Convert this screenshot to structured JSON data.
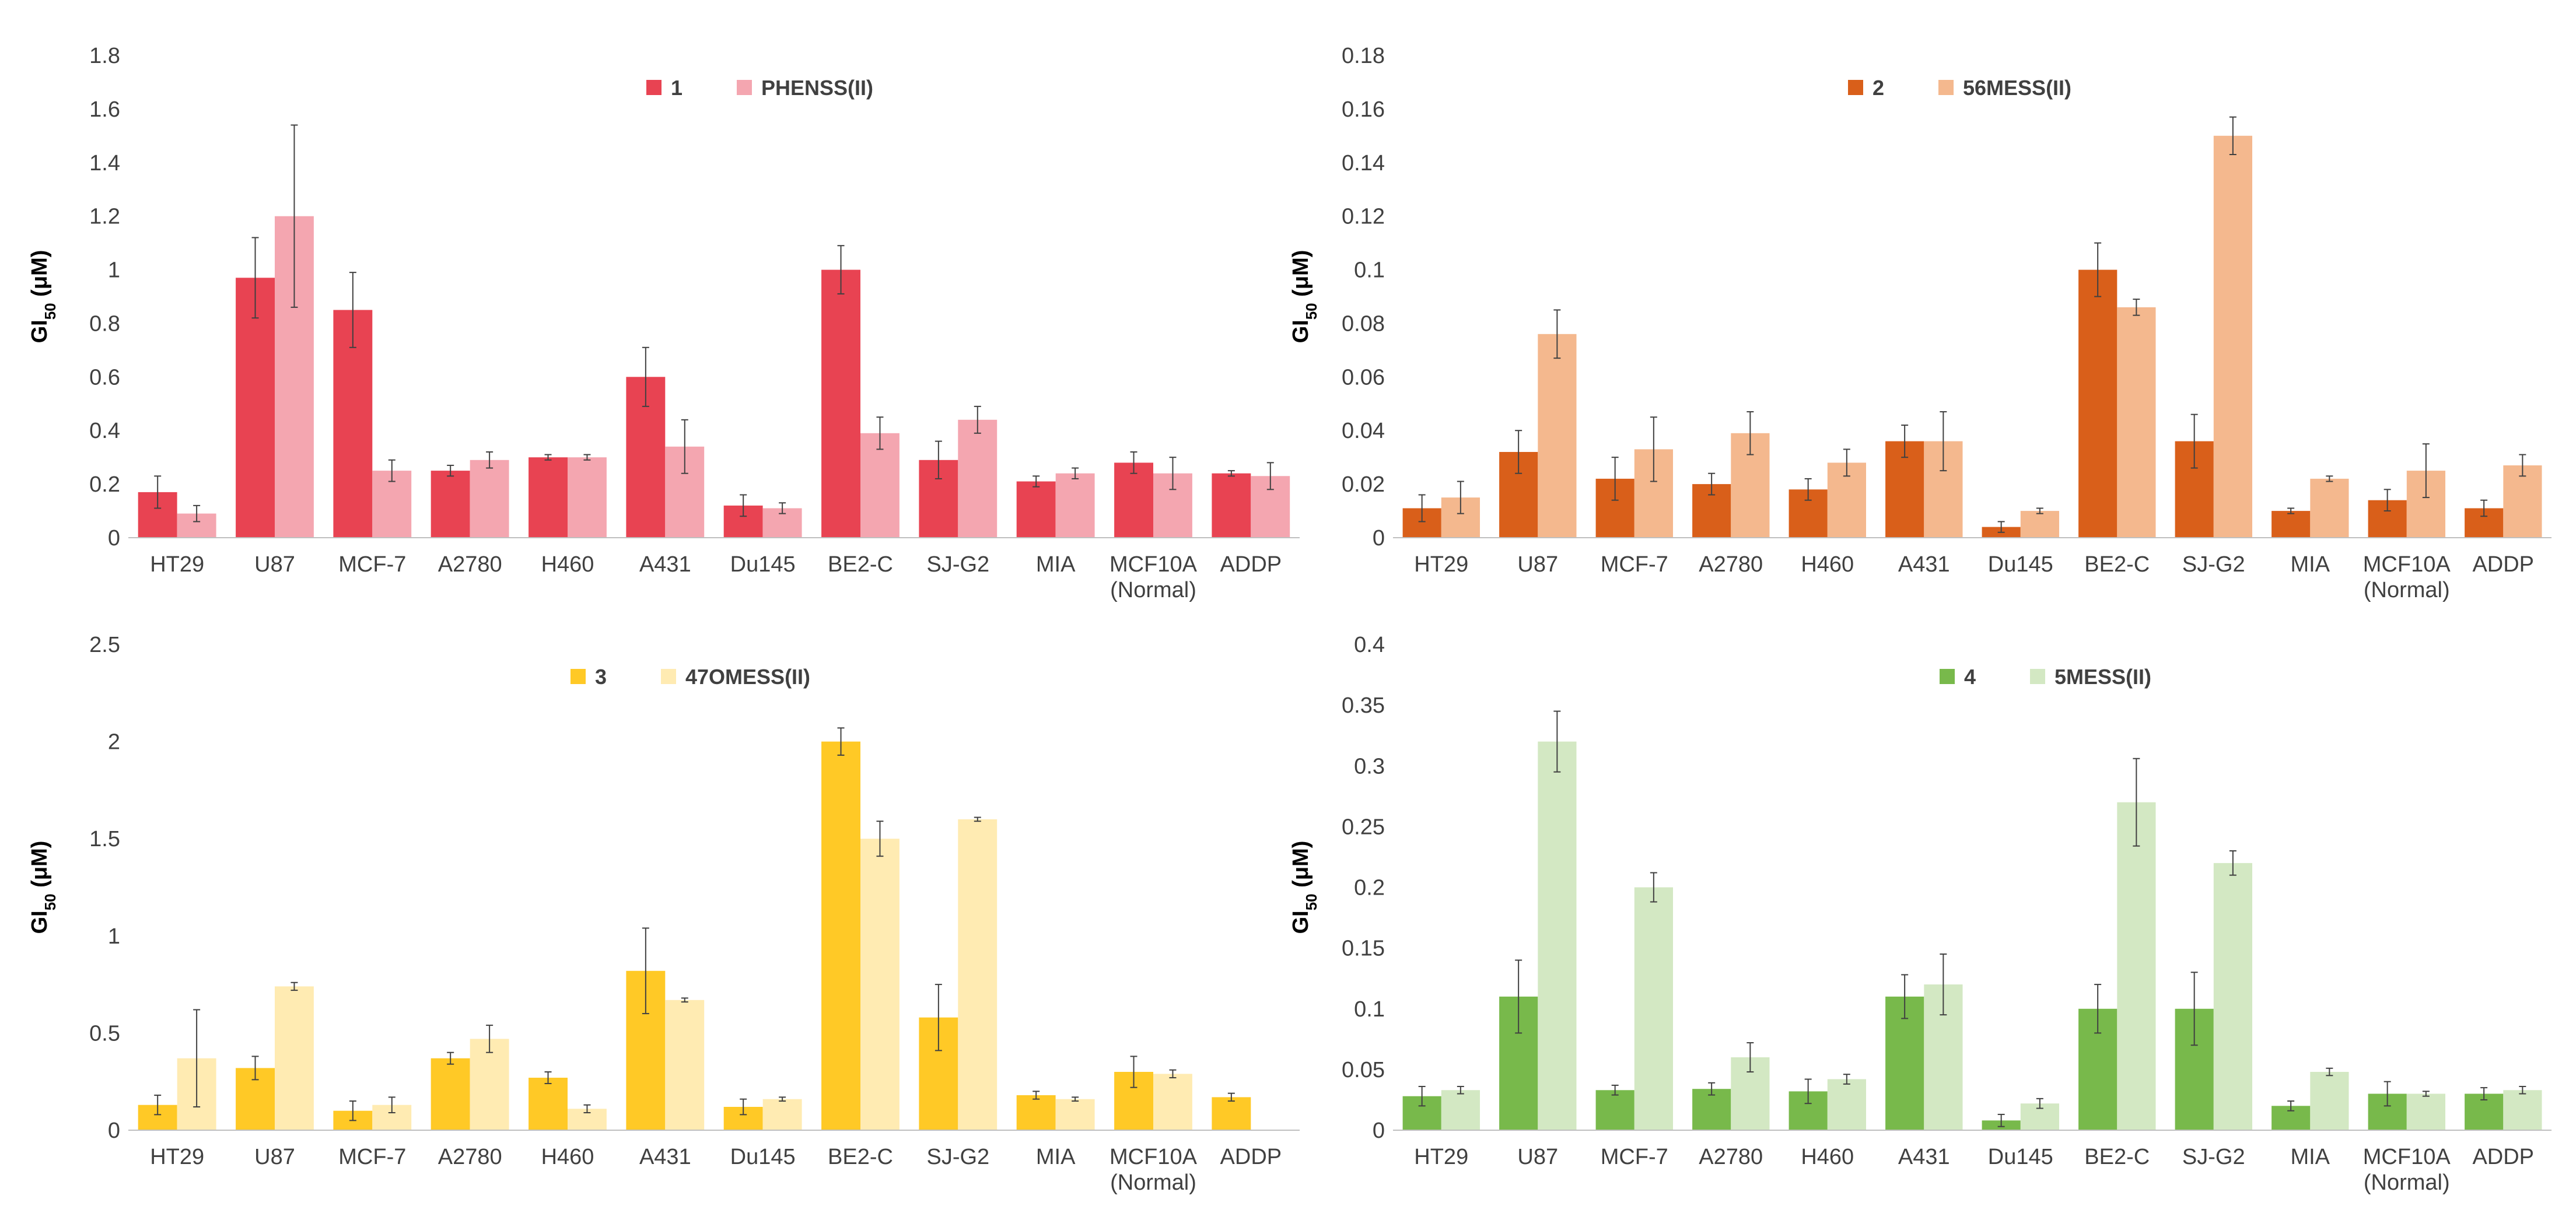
{
  "chart_data": [
    {
      "type": "bar",
      "categories": [
        "HT29",
        "U87",
        "MCF-7",
        "A2780",
        "H460",
        "A431",
        "Du145",
        "BE2-C",
        "SJ-G2",
        "MIA",
        "MCF10A\n(Normal)",
        "ADDP"
      ],
      "series": [
        {
          "name": "1",
          "color": "#E84352",
          "values": [
            0.17,
            0.97,
            0.85,
            0.25,
            0.3,
            0.6,
            0.12,
            1.0,
            0.29,
            0.21,
            0.28,
            0.24
          ],
          "errors": [
            0.06,
            0.15,
            0.14,
            0.02,
            0.01,
            0.11,
            0.04,
            0.09,
            0.07,
            0.02,
            0.04,
            0.01
          ]
        },
        {
          "name": "PHENSS(II)",
          "color": "#F4A6B0",
          "values": [
            0.09,
            1.2,
            0.25,
            0.29,
            0.3,
            0.34,
            0.11,
            0.39,
            0.44,
            0.24,
            0.24,
            0.23
          ],
          "errors": [
            0.03,
            0.34,
            0.04,
            0.03,
            0.01,
            0.1,
            0.02,
            0.06,
            0.05,
            0.02,
            0.06,
            0.05
          ]
        }
      ],
      "title": "",
      "xlabel": "",
      "ylabel": "GI50 (μM)",
      "ylim": [
        0,
        1.8
      ],
      "yticks": [
        "0",
        "0.2",
        "0.4",
        "0.6",
        "0.8",
        "1",
        "1.2",
        "1.4",
        "1.6",
        "1.8"
      ],
      "legend": "top-center"
    },
    {
      "type": "bar",
      "categories": [
        "HT29",
        "U87",
        "MCF-7",
        "A2780",
        "H460",
        "A431",
        "Du145",
        "BE2-C",
        "SJ-G2",
        "MIA",
        "MCF10A\n(Normal)",
        "ADDP"
      ],
      "series": [
        {
          "name": "2",
          "color": "#D95F1A",
          "values": [
            0.011,
            0.032,
            0.022,
            0.02,
            0.018,
            0.036,
            0.004,
            0.1,
            0.036,
            0.01,
            0.014,
            0.011
          ],
          "errors": [
            0.005,
            0.008,
            0.008,
            0.004,
            0.004,
            0.006,
            0.002,
            0.01,
            0.01,
            0.001,
            0.004,
            0.003
          ]
        },
        {
          "name": "56MESS(II)",
          "color": "#F4B88E",
          "values": [
            0.015,
            0.076,
            0.033,
            0.039,
            0.028,
            0.036,
            0.01,
            0.086,
            0.15,
            0.022,
            0.025,
            0.027
          ],
          "errors": [
            0.006,
            0.009,
            0.012,
            0.008,
            0.005,
            0.011,
            0.001,
            0.003,
            0.007,
            0.001,
            0.01,
            0.004
          ]
        }
      ],
      "title": "",
      "xlabel": "",
      "ylabel": "GI50 (μM)",
      "ylim": [
        0,
        0.18
      ],
      "yticks": [
        "0",
        "0.02",
        "0.04",
        "0.06",
        "0.08",
        "0.1",
        "0.12",
        "0.14",
        "0.16",
        "0.18"
      ],
      "legend": "top-center"
    },
    {
      "type": "bar",
      "categories": [
        "HT29",
        "U87",
        "MCF-7",
        "A2780",
        "H460",
        "A431",
        "Du145",
        "BE2-C",
        "SJ-G2",
        "MIA",
        "MCF10A\n(Normal)",
        "ADDP"
      ],
      "series": [
        {
          "name": "3",
          "color": "#FFC926",
          "values": [
            0.13,
            0.32,
            0.1,
            0.37,
            0.27,
            0.82,
            0.12,
            2.0,
            0.58,
            0.18,
            0.3,
            0.17
          ],
          "errors": [
            0.05,
            0.06,
            0.05,
            0.03,
            0.03,
            0.22,
            0.04,
            0.07,
            0.17,
            0.02,
            0.08,
            0.02
          ]
        },
        {
          "name": "47OMESS(II)",
          "color": "#FFEBB2",
          "values": [
            0.37,
            0.74,
            0.13,
            0.47,
            0.11,
            0.67,
            0.16,
            1.5,
            1.6,
            0.16,
            0.29,
            0.0
          ],
          "errors": [
            0.25,
            0.02,
            0.04,
            0.07,
            0.02,
            0.01,
            0.01,
            0.09,
            0.01,
            0.01,
            0.02,
            0.0
          ]
        }
      ],
      "title": "",
      "xlabel": "",
      "ylabel": "GI50 (μM)",
      "ylim": [
        0,
        2.5
      ],
      "yticks": [
        "0",
        "0.5",
        "1",
        "1.5",
        "2",
        "2.5"
      ],
      "legend": "top-center"
    },
    {
      "type": "bar",
      "categories": [
        "HT29",
        "U87",
        "MCF-7",
        "A2780",
        "H460",
        "A431",
        "Du145",
        "BE2-C",
        "SJ-G2",
        "MIA",
        "MCF10A\n(Normal)",
        "ADDP"
      ],
      "series": [
        {
          "name": "4",
          "color": "#78B94B",
          "values": [
            0.028,
            0.11,
            0.033,
            0.034,
            0.032,
            0.11,
            0.008,
            0.1,
            0.1,
            0.02,
            0.03,
            0.03
          ],
          "errors": [
            0.008,
            0.03,
            0.004,
            0.005,
            0.01,
            0.018,
            0.005,
            0.02,
            0.03,
            0.004,
            0.01,
            0.005
          ]
        },
        {
          "name": "5MESS(II)",
          "color": "#D3E8C3",
          "values": [
            0.033,
            0.32,
            0.2,
            0.06,
            0.042,
            0.12,
            0.022,
            0.27,
            0.22,
            0.048,
            0.03,
            0.033
          ],
          "errors": [
            0.003,
            0.025,
            0.012,
            0.012,
            0.004,
            0.025,
            0.004,
            0.036,
            0.01,
            0.003,
            0.002,
            0.003
          ]
        }
      ],
      "title": "",
      "xlabel": "",
      "ylabel": "GI50 (μM)",
      "ylim": [
        0,
        0.4
      ],
      "yticks": [
        "0",
        "0.05",
        "0.1",
        "0.15",
        "0.2",
        "0.25",
        "0.3",
        "0.35",
        "0.4"
      ],
      "legend": "top-center"
    }
  ]
}
